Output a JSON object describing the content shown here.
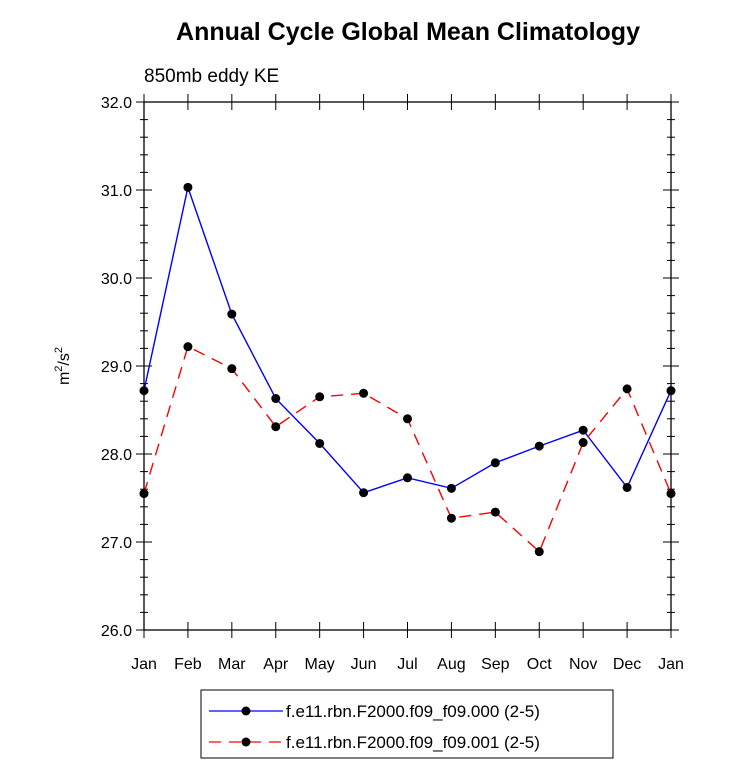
{
  "chart_data": {
    "type": "line",
    "title": "Annual Cycle Global Mean Climatology",
    "subtitle": "850mb eddy KE",
    "xlabel": "",
    "ylabel": "m²/s²",
    "ylabel_base": "m",
    "ylabel_num_exp": "2",
    "ylabel_sep": "/s",
    "ylabel_den_exp": "2",
    "categories": [
      "Jan",
      "Feb",
      "Mar",
      "Apr",
      "May",
      "Jun",
      "Jul",
      "Aug",
      "Sep",
      "Oct",
      "Nov",
      "Dec",
      "Jan"
    ],
    "ylim": [
      26.0,
      32.0
    ],
    "yticks": [
      "26.0",
      "27.0",
      "28.0",
      "29.0",
      "30.0",
      "31.0",
      "32.0"
    ],
    "grid": false,
    "legend_position": "bottom-center",
    "series": [
      {
        "name": "f.e11.rbn.F2000.f09_f09.000 (2-5)",
        "color": "#0000ff",
        "line_style": "solid",
        "marker_color": "#000000",
        "values": [
          28.72,
          31.03,
          29.59,
          28.63,
          28.12,
          27.56,
          27.73,
          27.61,
          27.9,
          28.09,
          28.27,
          27.62,
          28.72
        ]
      },
      {
        "name": "f.e11.rbn.F2000.f09_f09.001 (2-5)",
        "color": "#ff0000",
        "line_style": "dashed",
        "marker_color": "#000000",
        "values": [
          27.55,
          29.22,
          28.97,
          28.31,
          28.65,
          28.69,
          28.4,
          27.27,
          27.34,
          26.89,
          28.13,
          28.74,
          27.55
        ]
      }
    ]
  }
}
